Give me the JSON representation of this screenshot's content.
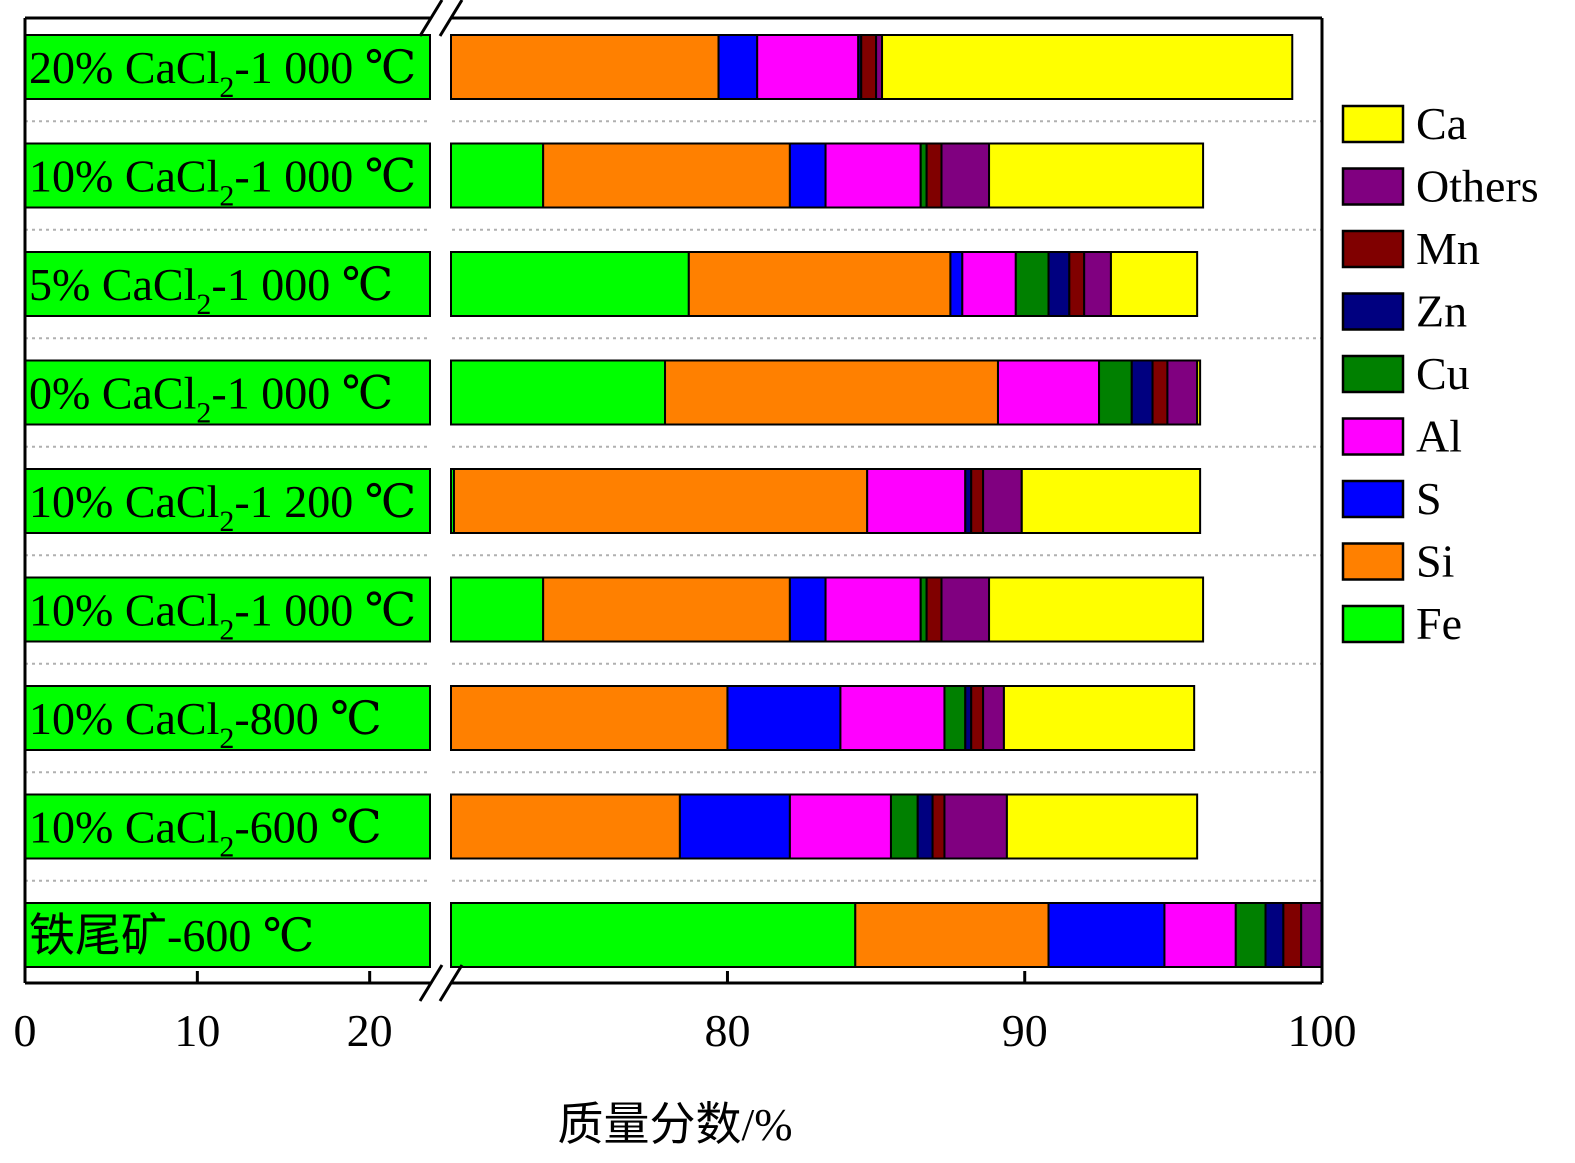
{
  "chart_data": {
    "type": "bar",
    "orientation": "horizontal",
    "stacked": true,
    "xlabel": "质量分数/%",
    "x_ticks": [
      "0",
      "10",
      "20",
      "80",
      "90",
      "100"
    ],
    "x_axis_break": {
      "from": 23.5,
      "to": 70.7
    },
    "xlim": [
      0,
      100
    ],
    "grid": "dotted horizontal separators between rows",
    "legend_position": "right",
    "legend": [
      "Ca",
      "Others",
      "Mn",
      "Zn",
      "Cu",
      "Al",
      "S",
      "Si",
      "Fe"
    ],
    "series": [
      {
        "name": "Fe",
        "color": "#00ff00"
      },
      {
        "name": "Si",
        "color": "#ff8000"
      },
      {
        "name": "S",
        "color": "#0000ff"
      },
      {
        "name": "Al",
        "color": "#ff00ff"
      },
      {
        "name": "Cu",
        "color": "#008000"
      },
      {
        "name": "Zn",
        "color": "#000080"
      },
      {
        "name": "Mn",
        "color": "#800000"
      },
      {
        "name": "Others",
        "color": "#800080"
      },
      {
        "name": "Ca",
        "color": "#ffff00"
      }
    ],
    "categories": [
      {
        "prefix": "20% CaCl",
        "sub": "2",
        "suffix": "-1 000 ℃",
        "values": {
          "Fe": 70.7,
          "Si": 9.0,
          "S": 1.3,
          "Al": 3.4,
          "Cu": 0.0,
          "Zn": 0.1,
          "Mn": 0.5,
          "Others": 0.2,
          "Ca": 13.8
        }
      },
      {
        "prefix": "10% CaCl",
        "sub": "2",
        "suffix": "-1 000 ℃",
        "values": {
          "Fe": 73.8,
          "Si": 8.3,
          "S": 1.2,
          "Al": 3.2,
          "Cu": 0.2,
          "Zn": 0.0,
          "Mn": 0.5,
          "Others": 1.6,
          "Ca": 7.2
        }
      },
      {
        "prefix": "5% CaCl",
        "sub": "2",
        "suffix": "-1 000 ℃",
        "values": {
          "Fe": 78.7,
          "Si": 8.8,
          "S": 0.4,
          "Al": 1.8,
          "Cu": 1.1,
          "Zn": 0.7,
          "Mn": 0.5,
          "Others": 0.9,
          "Ca": 2.9
        }
      },
      {
        "prefix": "0% CaCl",
        "sub": "2",
        "suffix": "-1 000 ℃",
        "values": {
          "Fe": 77.9,
          "Si": 11.2,
          "S": 0.0,
          "Al": 3.4,
          "Cu": 1.1,
          "Zn": 0.7,
          "Mn": 0.5,
          "Others": 1.0,
          "Ca": 0.1
        }
      },
      {
        "prefix": "10% CaCl",
        "sub": "2",
        "suffix": "-1 200 ℃",
        "values": {
          "Fe": 70.8,
          "Si": 13.9,
          "S": 0.0,
          "Al": 3.3,
          "Cu": 0.0,
          "Zn": 0.2,
          "Mn": 0.4,
          "Others": 1.3,
          "Ca": 6.0
        }
      },
      {
        "prefix": "10% CaCl",
        "sub": "2",
        "suffix": "-1 000 ℃",
        "values": {
          "Fe": 73.8,
          "Si": 8.3,
          "S": 1.2,
          "Al": 3.2,
          "Cu": 0.2,
          "Zn": 0.0,
          "Mn": 0.5,
          "Others": 1.6,
          "Ca": 7.2
        }
      },
      {
        "prefix": "10% CaCl",
        "sub": "2",
        "suffix": "-800 ℃",
        "values": {
          "Fe": 70.7,
          "Si": 9.3,
          "S": 3.8,
          "Al": 3.5,
          "Cu": 0.7,
          "Zn": 0.2,
          "Mn": 0.4,
          "Others": 0.7,
          "Ca": 6.4
        }
      },
      {
        "prefix": "10% CaCl",
        "sub": "2",
        "suffix": "-600 ℃",
        "values": {
          "Fe": 70.7,
          "Si": 7.7,
          "S": 3.7,
          "Al": 3.4,
          "Cu": 0.9,
          "Zn": 0.5,
          "Mn": 0.4,
          "Others": 2.1,
          "Ca": 6.4
        }
      },
      {
        "prefix": "铁尾矿-600 ℃",
        "sub": "",
        "suffix": "",
        "values": {
          "Fe": 84.3,
          "Si": 6.5,
          "S": 3.9,
          "Al": 2.4,
          "Cu": 1.0,
          "Zn": 0.6,
          "Mn": 0.6,
          "Others": 0.9,
          "Ca": 0.0
        }
      }
    ]
  }
}
